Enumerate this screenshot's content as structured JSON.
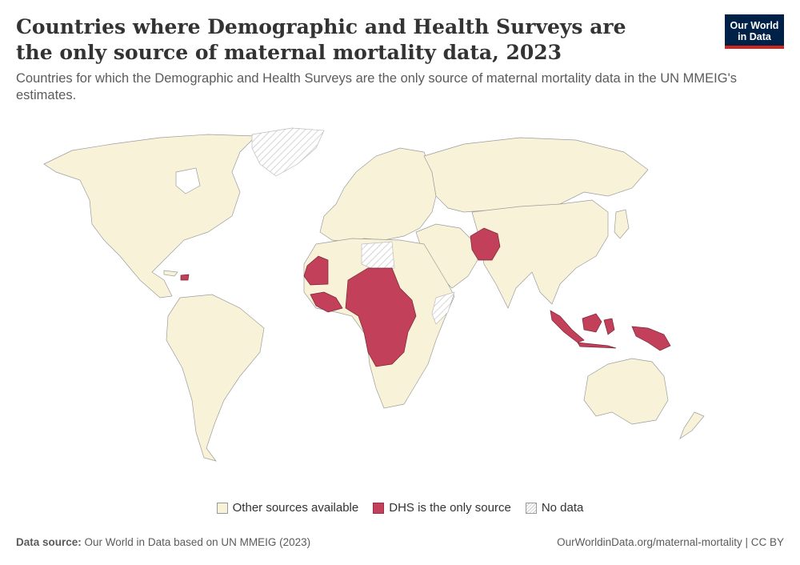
{
  "header": {
    "title": "Countries where Demographic and Health Surveys are the only source of maternal mortality data, 2023",
    "subtitle": "Countries for which the Demographic and Health Surveys are the only source of maternal mortality data in the UN MMEIG's estimates."
  },
  "logo": {
    "line1": "Our World",
    "line2": "in Data",
    "bg_color": "#002147",
    "accent_color": "#ce261e"
  },
  "legend": {
    "other": "Other sources available",
    "dhs": "DHS is the only source",
    "nodata": "No data"
  },
  "colors": {
    "other": "#f8f2d8",
    "dhs": "#c2405a",
    "nodata_hatch": "#c8c8c8"
  },
  "footer": {
    "source_label": "Data source:",
    "source_text": "Our World in Data based on UN MMEIG (2023)",
    "link": "OurWorldinData.org/maternal-mortality | CC BY"
  },
  "map_data": {
    "categories": [
      "Other sources available",
      "DHS is the only source",
      "No data"
    ],
    "regions": [
      {
        "name": "North America",
        "category": "Other sources available"
      },
      {
        "name": "Greenland",
        "category": "No data"
      },
      {
        "name": "South America",
        "category": "Other sources available"
      },
      {
        "name": "Europe",
        "category": "Other sources available"
      },
      {
        "name": "Russia & Central Asia",
        "category": "Other sources available"
      },
      {
        "name": "Middle East",
        "category": "Other sources available"
      },
      {
        "name": "Libya",
        "category": "No data"
      },
      {
        "name": "Somalia",
        "category": "No data"
      },
      {
        "name": "Haiti",
        "category": "DHS is the only source"
      },
      {
        "name": "Mauritania",
        "category": "DHS is the only source"
      },
      {
        "name": "West Africa (Guinea, Côte d'Ivoire, Ghana, Togo, Benin, Liberia)",
        "category": "DHS is the only source"
      },
      {
        "name": "Central Africa (Niger, Chad, Nigeria, Cameroon, CAR, Congo, DR Congo, Gabon, Angola)",
        "category": "DHS is the only source"
      },
      {
        "name": "Uganda / Burundi",
        "category": "DHS is the only source"
      },
      {
        "name": "Pakistan",
        "category": "DHS is the only source"
      },
      {
        "name": "Indonesia",
        "category": "DHS is the only source"
      },
      {
        "name": "Papua New Guinea",
        "category": "DHS is the only source"
      },
      {
        "name": "Rest of Africa",
        "category": "Other sources available"
      },
      {
        "name": "South & East Asia",
        "category": "Other sources available"
      },
      {
        "name": "Australia",
        "category": "Other sources available"
      },
      {
        "name": "New Zealand",
        "category": "Other sources available"
      }
    ]
  }
}
